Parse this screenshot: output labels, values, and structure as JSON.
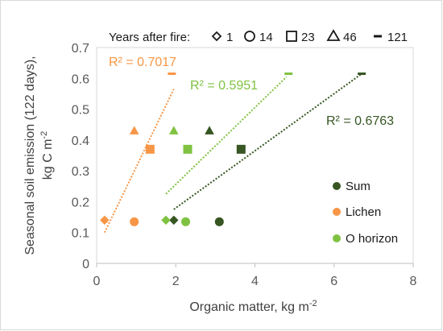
{
  "chart_data": {
    "type": "scatter",
    "xlabel": "Organic matter, kg m",
    "xlabel_sup": "-2",
    "ylabel_line1": "Seasonal soil emission (122 days),",
    "ylabel_line2": "kg C m",
    "ylabel_sup": "-2",
    "xlim": [
      0,
      8
    ],
    "ylim": [
      0,
      0.7
    ],
    "xticks": [
      0,
      2,
      4,
      6,
      8
    ],
    "yticks": [
      0,
      0.1,
      0.2,
      0.3,
      0.4,
      0.5,
      0.6,
      0.7
    ],
    "ytick_labels": [
      "0",
      "0.1",
      "0.2",
      "0.3",
      "0.4",
      "0.5",
      "0.6",
      "0.7"
    ],
    "grid": false,
    "shape_legend": {
      "title": "Years after fire:",
      "entries": [
        {
          "marker": "diamond",
          "label": "1"
        },
        {
          "marker": "circle",
          "label": "14"
        },
        {
          "marker": "square",
          "label": "23"
        },
        {
          "marker": "triangle",
          "label": "46"
        },
        {
          "marker": "dash",
          "label": "121"
        }
      ]
    },
    "color_legend_position": "lower-right",
    "series": [
      {
        "name": "Sum",
        "color": "#375623",
        "points": [
          {
            "marker": "diamond",
            "x": 1.95,
            "y": 0.14
          },
          {
            "marker": "circle",
            "x": 3.1,
            "y": 0.135
          },
          {
            "marker": "square",
            "x": 3.65,
            "y": 0.37
          },
          {
            "marker": "triangle",
            "x": 2.85,
            "y": 0.43
          },
          {
            "marker": "dash",
            "x": 6.7,
            "y": 0.615
          }
        ],
        "trendline": {
          "x": [
            1.95,
            6.7
          ],
          "y": [
            0.175,
            0.615
          ],
          "r2_label": "R² = 0.6763"
        }
      },
      {
        "name": "Lichen",
        "color": "#f79646",
        "points": [
          {
            "marker": "diamond",
            "x": 0.2,
            "y": 0.14
          },
          {
            "marker": "circle",
            "x": 0.95,
            "y": 0.135
          },
          {
            "marker": "square",
            "x": 1.35,
            "y": 0.37
          },
          {
            "marker": "triangle",
            "x": 0.95,
            "y": 0.43
          },
          {
            "marker": "dash",
            "x": 1.9,
            "y": 0.615
          }
        ],
        "trendline": {
          "x": [
            0.2,
            1.95
          ],
          "y": [
            0.1,
            0.565
          ],
          "r2_label": "R² = 0.7017"
        }
      },
      {
        "name": "O horizon",
        "color": "#7fc241",
        "points": [
          {
            "marker": "diamond",
            "x": 1.75,
            "y": 0.14
          },
          {
            "marker": "circle",
            "x": 2.25,
            "y": 0.135
          },
          {
            "marker": "square",
            "x": 2.3,
            "y": 0.37
          },
          {
            "marker": "triangle",
            "x": 1.95,
            "y": 0.43
          },
          {
            "marker": "dash",
            "x": 4.85,
            "y": 0.615
          }
        ],
        "trendline": {
          "x": [
            1.75,
            4.8
          ],
          "y": [
            0.225,
            0.605
          ],
          "r2_label": "R² = 0.5951"
        }
      }
    ]
  }
}
